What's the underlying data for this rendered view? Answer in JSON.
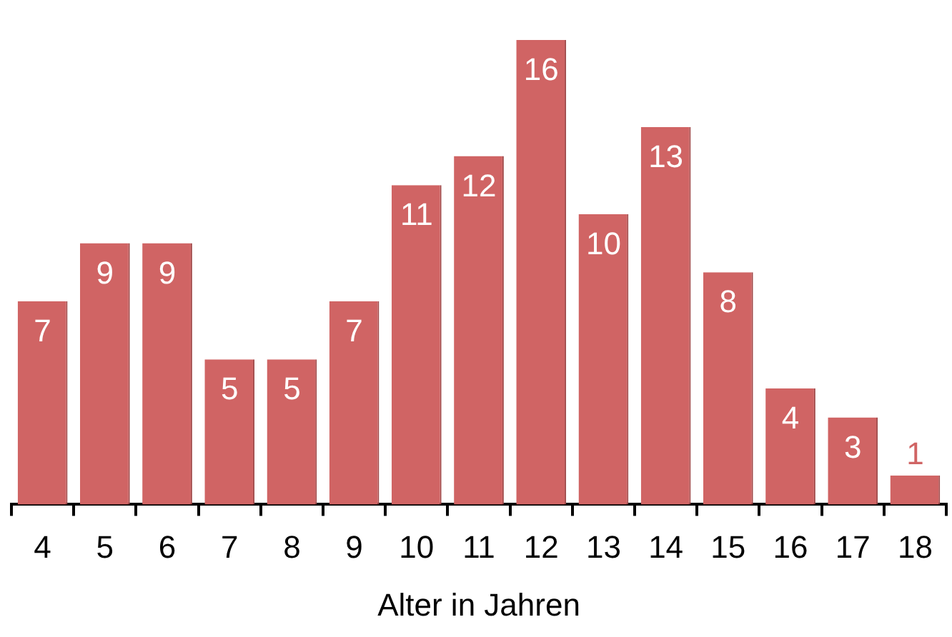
{
  "chart_data": {
    "type": "bar",
    "xlabel": "Alter in Jahren",
    "categories": [
      "4",
      "5",
      "6",
      "7",
      "8",
      "9",
      "10",
      "11",
      "12",
      "13",
      "14",
      "15",
      "16",
      "17",
      "18"
    ],
    "values": [
      7,
      9,
      9,
      5,
      5,
      7,
      11,
      12,
      16,
      10,
      13,
      8,
      4,
      3,
      1
    ],
    "color": "#d06464",
    "data_labels": true,
    "grid": false,
    "legend": false
  }
}
